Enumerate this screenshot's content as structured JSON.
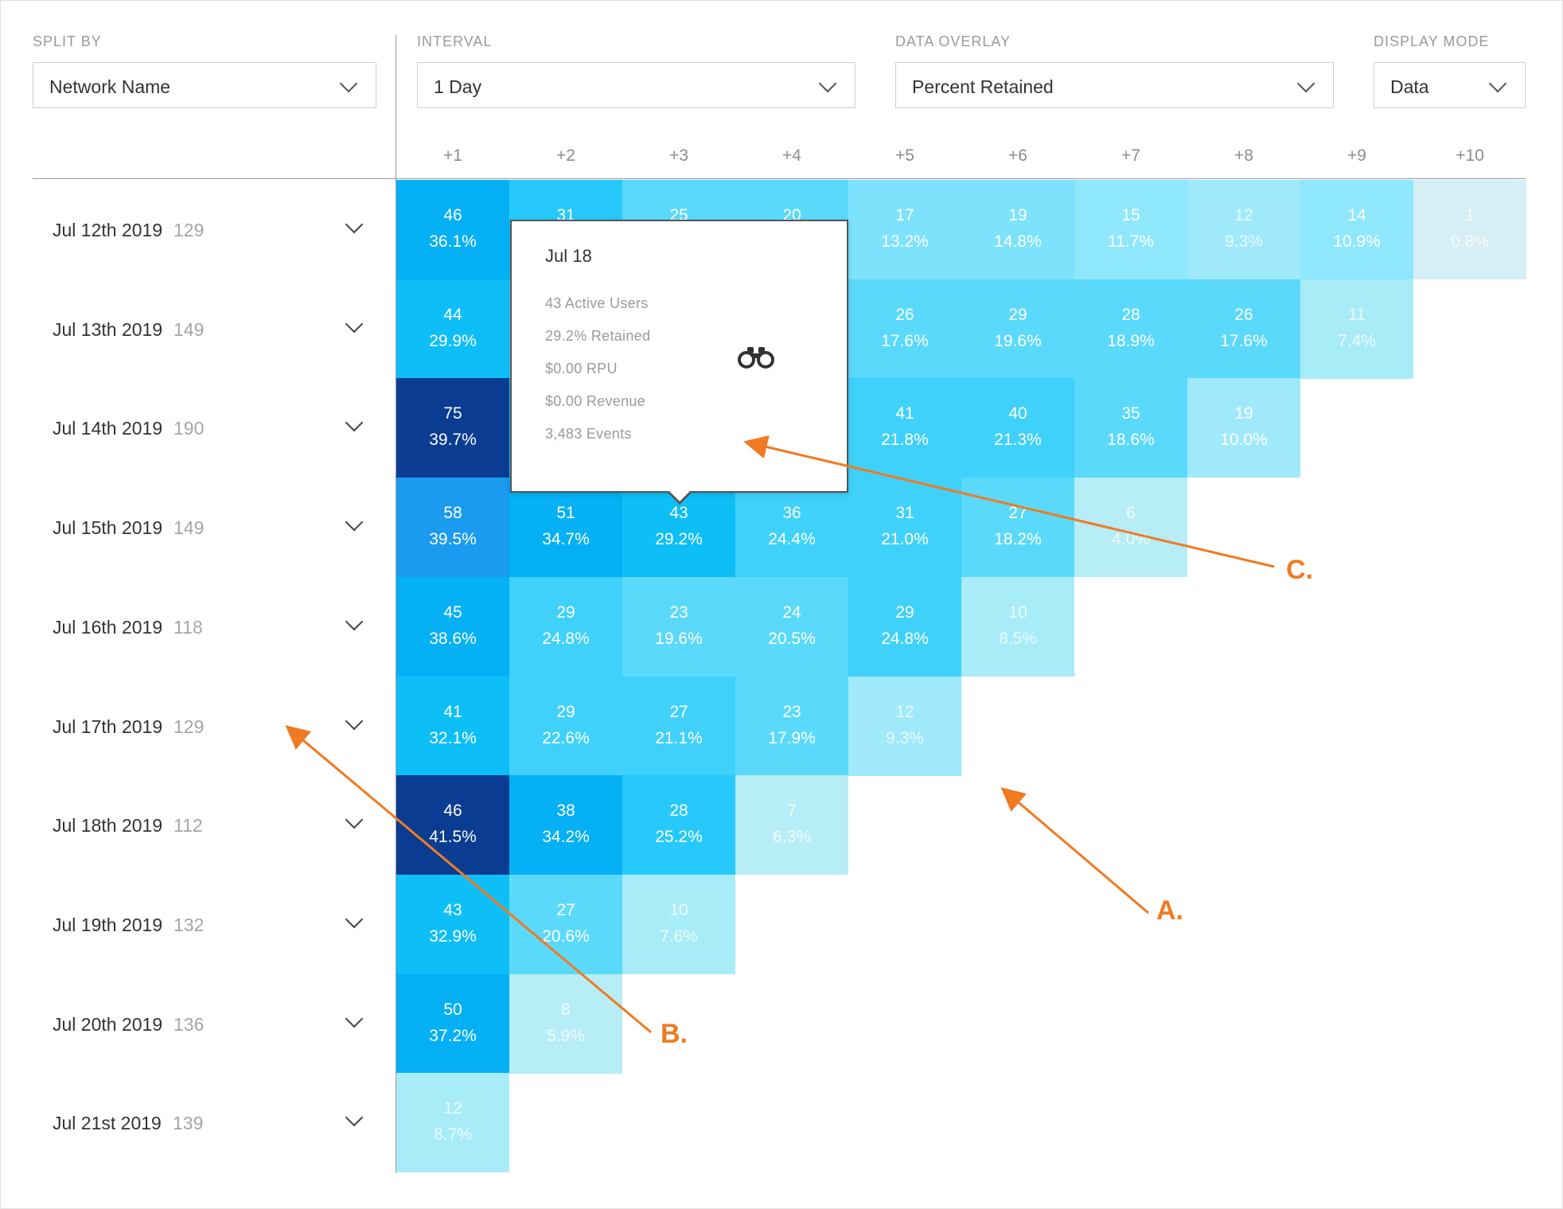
{
  "controls": {
    "split_by": {
      "label": "SPLIT BY",
      "value": "Network Name"
    },
    "interval": {
      "label": "INTERVAL",
      "value": "1 Day"
    },
    "data_overlay": {
      "label": "DATA OVERLAY",
      "value": "Percent Retained"
    },
    "display_mode": {
      "label": "DISPLAY MODE",
      "value": "Data"
    }
  },
  "columns": [
    "+1",
    "+2",
    "+3",
    "+4",
    "+5",
    "+6",
    "+7",
    "+8",
    "+9",
    "+10"
  ],
  "rows": [
    {
      "date": "Jul 12th 2019",
      "count": "129",
      "cells": [
        [
          "46",
          "36.1%"
        ],
        [
          "31",
          ""
        ],
        [
          "25",
          ""
        ],
        [
          "20",
          ""
        ],
        [
          "17",
          "13.2%"
        ],
        [
          "19",
          "14.8%"
        ],
        [
          "15",
          "11.7%"
        ],
        [
          "12",
          "9.3%"
        ],
        [
          "14",
          "10.9%"
        ],
        [
          "1",
          "0.8%"
        ]
      ]
    },
    {
      "date": "Jul 13th 2019",
      "count": "149",
      "cells": [
        [
          "44",
          "29.9%"
        ],
        [
          "",
          ""
        ],
        [
          "",
          ""
        ],
        [
          "",
          ""
        ],
        [
          "26",
          "17.6%"
        ],
        [
          "29",
          "19.6%"
        ],
        [
          "28",
          "18.9%"
        ],
        [
          "26",
          "17.6%"
        ],
        [
          "11",
          "7.4%"
        ]
      ]
    },
    {
      "date": "Jul 14th 2019",
      "count": "190",
      "cells": [
        [
          "75",
          "39.7%"
        ],
        [
          "",
          ""
        ],
        [
          "",
          ""
        ],
        [
          "",
          ""
        ],
        [
          "41",
          "21.8%"
        ],
        [
          "40",
          "21.3%"
        ],
        [
          "35",
          "18.6%"
        ],
        [
          "19",
          "10.0%"
        ]
      ]
    },
    {
      "date": "Jul 15th 2019",
      "count": "149",
      "cells": [
        [
          "58",
          "39.5%"
        ],
        [
          "51",
          "34.7%"
        ],
        [
          "43",
          "29.2%"
        ],
        [
          "36",
          "24.4%"
        ],
        [
          "31",
          "21.0%"
        ],
        [
          "27",
          "18.2%"
        ],
        [
          "6",
          "4.0%"
        ]
      ]
    },
    {
      "date": "Jul 16th 2019",
      "count": "118",
      "cells": [
        [
          "45",
          "38.6%"
        ],
        [
          "29",
          "24.8%"
        ],
        [
          "23",
          "19.6%"
        ],
        [
          "24",
          "20.5%"
        ],
        [
          "29",
          "24.8%"
        ],
        [
          "10",
          "8.5%"
        ]
      ]
    },
    {
      "date": "Jul 17th 2019",
      "count": "129",
      "cells": [
        [
          "41",
          "32.1%"
        ],
        [
          "29",
          "22.6%"
        ],
        [
          "27",
          "21.1%"
        ],
        [
          "23",
          "17.9%"
        ],
        [
          "12",
          "9.3%"
        ]
      ]
    },
    {
      "date": "Jul 18th 2019",
      "count": "112",
      "cells": [
        [
          "46",
          "41.5%"
        ],
        [
          "38",
          "34.2%"
        ],
        [
          "28",
          "25.2%"
        ],
        [
          "7",
          "6.3%"
        ]
      ]
    },
    {
      "date": "Jul 19th 2019",
      "count": "132",
      "cells": [
        [
          "43",
          "32.9%"
        ],
        [
          "27",
          "20.6%"
        ],
        [
          "10",
          "7.6%"
        ]
      ]
    },
    {
      "date": "Jul 20th 2019",
      "count": "136",
      "cells": [
        [
          "50",
          "37.2%"
        ],
        [
          "8",
          "5.9%"
        ]
      ]
    },
    {
      "date": "Jul 21st 2019",
      "count": "139",
      "cells": [
        [
          "12",
          "8.7%"
        ]
      ]
    }
  ],
  "tooltip": {
    "title": "Jul 18",
    "lines": [
      "43 Active Users",
      "29.2% Retained",
      "$0.00 RPU",
      "$0.00 Revenue",
      "3,483 Events"
    ],
    "icon": "binoculars-icon"
  },
  "annotations": {
    "a": "A.",
    "b": "B.",
    "c": "C."
  },
  "colors": {
    "accent_annotation": "#f07a22",
    "scale_darkest": "#0a3d91",
    "scale_lightest": "#d6eef6"
  }
}
